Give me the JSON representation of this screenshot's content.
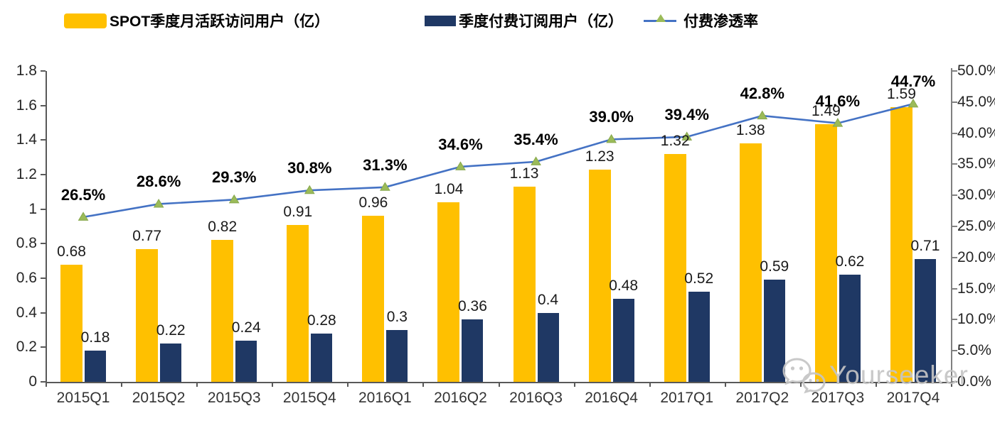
{
  "chart_data": {
    "type": "bar+line",
    "categories": [
      "2015Q1",
      "2015Q2",
      "2015Q3",
      "2015Q4",
      "2016Q1",
      "2016Q2",
      "2016Q3",
      "2016Q4",
      "2017Q1",
      "2017Q2",
      "2017Q3",
      "2017Q4"
    ],
    "series": [
      {
        "name": "SPOT季度月活跃访问用户（亿）",
        "type": "bar",
        "axis": "left",
        "color": "#FFC000",
        "values": [
          0.68,
          0.77,
          0.82,
          0.91,
          0.96,
          1.04,
          1.13,
          1.23,
          1.32,
          1.38,
          1.49,
          1.59
        ],
        "labels": [
          "0.68",
          "0.77",
          "0.82",
          "0.91",
          "0.96",
          "1.04",
          "1.13",
          "1.23",
          "1.32",
          "1.38",
          "1.49",
          "1.59"
        ]
      },
      {
        "name": "季度付费订阅用户（亿）",
        "type": "bar",
        "axis": "left",
        "color": "#1F3864",
        "values": [
          0.18,
          0.22,
          0.24,
          0.28,
          0.3,
          0.36,
          0.4,
          0.48,
          0.52,
          0.59,
          0.62,
          0.71
        ],
        "labels": [
          "0.18",
          "0.22",
          "0.24",
          "0.28",
          "0.3",
          "0.36",
          "0.4",
          "0.48",
          "0.52",
          "0.59",
          "0.62",
          "0.71"
        ]
      },
      {
        "name": "付费渗透率",
        "type": "line",
        "axis": "right",
        "color": "#4472C4",
        "marker": "triangle",
        "marker_color": "#9BBB59",
        "values": [
          26.5,
          28.6,
          29.3,
          30.8,
          31.3,
          34.6,
          35.4,
          39.0,
          39.4,
          42.8,
          41.6,
          44.7
        ],
        "labels": [
          "26.5%",
          "28.6%",
          "29.3%",
          "30.8%",
          "31.3%",
          "34.6%",
          "35.4%",
          "39.0%",
          "39.4%",
          "42.8%",
          "41.6%",
          "44.7%"
        ]
      }
    ],
    "left_axis": {
      "min": 0,
      "max": 1.8,
      "step": 0.2,
      "ticks": [
        "0",
        "0.2",
        "0.4",
        "0.6",
        "0.8",
        "1",
        "1.2",
        "1.4",
        "1.6",
        "1.8"
      ]
    },
    "right_axis": {
      "min": 0,
      "max": 50,
      "step": 5,
      "ticks": [
        "0.0%",
        "5.0%",
        "10.0%",
        "15.0%",
        "20.0%",
        "25.0%",
        "30.0%",
        "35.0%",
        "40.0%",
        "45.0%",
        "50.0%"
      ]
    },
    "grid": false,
    "legend_position": "top"
  },
  "watermark": {
    "text": "Yourseeker"
  }
}
